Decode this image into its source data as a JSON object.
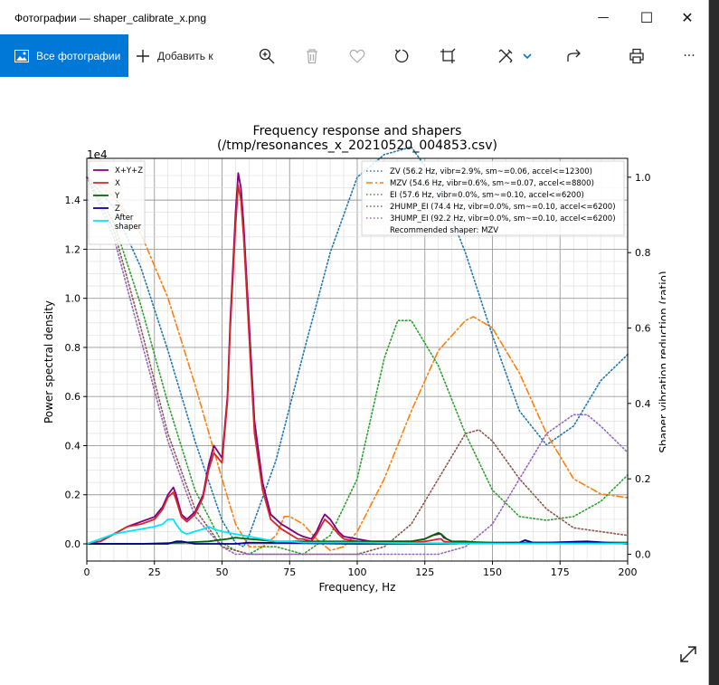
{
  "window": {
    "title": "Фотографии — shaper_calibrate_x.png",
    "minimize_glyph": "—",
    "maximize_glyph": "☐",
    "close_glyph": "✕"
  },
  "toolbar": {
    "all_photos_label": "Все фотографии",
    "add_to_label": "Добавить к",
    "more_glyph": "···",
    "icons": [
      "photos-icon",
      "plus-icon",
      "zoom-in-icon",
      "delete-icon",
      "favorite-icon",
      "rotate-icon",
      "crop-icon",
      "edit-icon",
      "chevron-down-icon",
      "share-icon",
      "print-icon",
      "more-icon"
    ]
  },
  "chart_data": {
    "type": "line",
    "title": "Frequency response and shapers",
    "subtitle": "(/tmp/resonances_x_20210520_004853.csv)",
    "xlabel": "Frequency, Hz",
    "ylabel": "Power spectral density",
    "y2label": "Shaper vibration reduction (ratio)",
    "y_multiplier": "1e4",
    "xlim": [
      0,
      200
    ],
    "ylim": [
      -0.07,
      1.57
    ],
    "y2lim": [
      -0.018,
      1.05
    ],
    "xticks": [
      "0",
      "25",
      "50",
      "75",
      "100",
      "125",
      "150",
      "175",
      "200"
    ],
    "yticks": [
      "0.0",
      "0.2",
      "0.4",
      "0.6",
      "0.8",
      "1.0",
      "1.2",
      "1.4"
    ],
    "y2ticks": [
      "0.0",
      "0.2",
      "0.4",
      "0.6",
      "0.8",
      "1.0"
    ],
    "grid": true,
    "legend_left_position": "upper-left",
    "legend_right_position": "upper-right",
    "psd_series": [
      {
        "name": "X+Y+Z",
        "color": "#800080",
        "x": [
          0,
          5,
          10,
          15,
          20,
          25,
          28,
          30,
          32,
          33,
          35,
          37,
          40,
          43,
          45,
          47,
          50,
          52,
          53,
          55,
          56,
          57,
          58,
          60,
          62,
          65,
          68,
          70,
          72,
          75,
          78,
          80,
          83,
          85,
          87,
          88,
          90,
          93,
          95,
          100,
          105,
          110,
          115,
          120,
          125,
          128,
          130,
          131,
          132,
          135,
          140,
          145,
          150,
          160,
          170,
          180,
          190,
          200
        ],
        "y": [
          0.0,
          0.01,
          0.04,
          0.07,
          0.09,
          0.11,
          0.15,
          0.2,
          0.23,
          0.2,
          0.12,
          0.1,
          0.13,
          0.2,
          0.32,
          0.4,
          0.35,
          0.6,
          0.9,
          1.35,
          1.51,
          1.45,
          1.3,
          0.9,
          0.5,
          0.25,
          0.12,
          0.1,
          0.08,
          0.06,
          0.04,
          0.03,
          0.02,
          0.05,
          0.1,
          0.12,
          0.1,
          0.05,
          0.03,
          0.02,
          0.01,
          0.01,
          0.01,
          0.01,
          0.02,
          0.035,
          0.04,
          0.04,
          0.025,
          0.01,
          0.01,
          0.005,
          0.005,
          0.005,
          0.005,
          0.005,
          0.005,
          0.005
        ]
      },
      {
        "name": "X",
        "color": "#d62728",
        "x": [
          0,
          5,
          10,
          15,
          20,
          25,
          28,
          30,
          32,
          33,
          35,
          37,
          40,
          43,
          45,
          47,
          50,
          52,
          53,
          55,
          56,
          57,
          58,
          60,
          62,
          65,
          68,
          70,
          72,
          75,
          78,
          80,
          83,
          85,
          87,
          88,
          90,
          93,
          95,
          100,
          105,
          110,
          115,
          120,
          125,
          128,
          130,
          131,
          132,
          135,
          140,
          145,
          150,
          160,
          170,
          180,
          190,
          200
        ],
        "y": [
          0.0,
          0.01,
          0.04,
          0.07,
          0.08,
          0.1,
          0.14,
          0.19,
          0.21,
          0.18,
          0.11,
          0.09,
          0.12,
          0.19,
          0.3,
          0.37,
          0.33,
          0.58,
          0.87,
          1.3,
          1.46,
          1.4,
          1.25,
          0.85,
          0.45,
          0.22,
          0.1,
          0.08,
          0.06,
          0.04,
          0.02,
          0.02,
          0.01,
          0.04,
          0.08,
          0.1,
          0.08,
          0.04,
          0.02,
          0.01,
          0.005,
          0.005,
          0.005,
          0.005,
          0.01,
          0.015,
          0.02,
          0.02,
          0.01,
          0.005,
          0.005,
          0.002,
          0.002,
          0.002,
          0.002,
          0.002,
          0.002,
          0.002
        ]
      },
      {
        "name": "Y",
        "color": "#006400",
        "x": [
          0,
          20,
          35,
          45,
          52,
          55,
          60,
          65,
          70,
          80,
          90,
          100,
          110,
          120,
          125,
          128,
          130,
          131,
          133,
          135,
          150,
          200
        ],
        "y": [
          0.0,
          0.0,
          0.005,
          0.01,
          0.02,
          0.025,
          0.02,
          0.015,
          0.01,
          0.01,
          0.01,
          0.01,
          0.01,
          0.01,
          0.02,
          0.035,
          0.045,
          0.04,
          0.02,
          0.01,
          0.005,
          0.005
        ]
      },
      {
        "name": "Z",
        "color": "#00008b",
        "x": [
          0,
          30,
          33,
          35,
          40,
          55,
          60,
          100,
          130,
          160,
          162,
          165,
          170,
          185,
          200
        ],
        "y": [
          0.0,
          0.0,
          0.01,
          0.01,
          0.0,
          0.0,
          0.005,
          0.0,
          0.0,
          0.005,
          0.015,
          0.005,
          0.005,
          0.01,
          0.0
        ]
      },
      {
        "name": "After shaper",
        "color": "#00e5ff",
        "x": [
          0,
          5,
          10,
          15,
          20,
          25,
          28,
          30,
          32,
          33,
          35,
          37,
          40,
          43,
          45,
          47,
          50,
          55,
          60,
          65,
          70,
          75,
          80,
          90,
          100,
          120,
          150,
          200
        ],
        "y": [
          0.0,
          0.02,
          0.04,
          0.05,
          0.06,
          0.07,
          0.08,
          0.1,
          0.1,
          0.08,
          0.05,
          0.04,
          0.05,
          0.06,
          0.07,
          0.06,
          0.05,
          0.04,
          0.03,
          0.02,
          0.01,
          0.01,
          0.005,
          0.005,
          0.005,
          0.003,
          0.002,
          0.002
        ]
      }
    ],
    "shapers": [
      {
        "name": "ZV (56.2 Hz, vibr=2.9%, sm~=0.06, accel<=12300)",
        "color": "#1f77b4",
        "style": "dotted",
        "x": [
          0,
          10,
          20,
          30,
          40,
          50,
          55,
          58,
          60,
          70,
          80,
          90,
          100,
          110,
          120,
          130,
          140,
          150,
          160,
          170,
          180,
          190,
          200
        ],
        "y": [
          1.0,
          0.92,
          0.76,
          0.54,
          0.3,
          0.09,
          0.03,
          0.02,
          0.05,
          0.25,
          0.53,
          0.8,
          1.0,
          1.06,
          1.08,
          0.98,
          0.8,
          0.58,
          0.38,
          0.29,
          0.34,
          0.46,
          0.53
        ]
      },
      {
        "name": "MZV (54.6 Hz, vibr=0.6%, sm~=0.07, accel<=8800)",
        "color": "#ff7f0e",
        "style": "dashdot",
        "x": [
          0,
          10,
          20,
          30,
          40,
          50,
          55,
          60,
          65,
          70,
          73,
          75,
          80,
          85,
          90,
          95,
          100,
          110,
          120,
          130,
          140,
          143,
          150,
          160,
          170,
          180,
          190,
          200
        ],
        "y": [
          1.0,
          0.95,
          0.85,
          0.68,
          0.45,
          0.2,
          0.08,
          0.02,
          0.02,
          0.05,
          0.1,
          0.1,
          0.08,
          0.04,
          0.01,
          0.02,
          0.06,
          0.2,
          0.38,
          0.54,
          0.62,
          0.63,
          0.6,
          0.48,
          0.32,
          0.2,
          0.16,
          0.15
        ]
      },
      {
        "name": "EI (57.6 Hz, vibr=0.0%, sm~=0.10, accel<=6200)",
        "color": "#2ca02c",
        "style": "dotted",
        "x": [
          0,
          10,
          20,
          30,
          40,
          50,
          55,
          60,
          65,
          70,
          75,
          80,
          90,
          100,
          110,
          115,
          120,
          130,
          140,
          150,
          160,
          170,
          180,
          190,
          200
        ],
        "y": [
          1.0,
          0.88,
          0.66,
          0.4,
          0.17,
          0.03,
          0.01,
          0.0,
          0.02,
          0.02,
          0.01,
          0.0,
          0.05,
          0.2,
          0.52,
          0.62,
          0.62,
          0.5,
          0.32,
          0.17,
          0.1,
          0.09,
          0.1,
          0.14,
          0.21
        ]
      },
      {
        "name": "2HUMP_EI (74.4 Hz, vibr=0.0%, sm~=0.10, accel<=6200)",
        "color": "#8c564b",
        "style": "dotted",
        "x": [
          0,
          10,
          20,
          30,
          40,
          50,
          55,
          60,
          70,
          80,
          90,
          100,
          110,
          120,
          130,
          140,
          145,
          150,
          160,
          170,
          180,
          190,
          200
        ],
        "y": [
          1.0,
          0.86,
          0.6,
          0.32,
          0.12,
          0.02,
          0.01,
          0.0,
          0.0,
          0.0,
          0.0,
          0.0,
          0.02,
          0.08,
          0.2,
          0.32,
          0.33,
          0.3,
          0.2,
          0.12,
          0.07,
          0.06,
          0.05
        ]
      },
      {
        "name": "3HUMP_EI (92.2 Hz, vibr=0.0%, sm~=0.10, accel<=6200)",
        "color": "#9467bd",
        "style": "dotted",
        "x": [
          0,
          10,
          20,
          30,
          40,
          50,
          55,
          60,
          80,
          100,
          120,
          130,
          140,
          150,
          160,
          170,
          180,
          185,
          190,
          200
        ],
        "y": [
          1.0,
          0.84,
          0.57,
          0.3,
          0.1,
          0.02,
          0.0,
          0.0,
          0.0,
          0.0,
          0.0,
          0.0,
          0.02,
          0.08,
          0.2,
          0.32,
          0.37,
          0.37,
          0.34,
          0.27
        ]
      }
    ],
    "recommended": "Recommended shaper: MZV"
  }
}
